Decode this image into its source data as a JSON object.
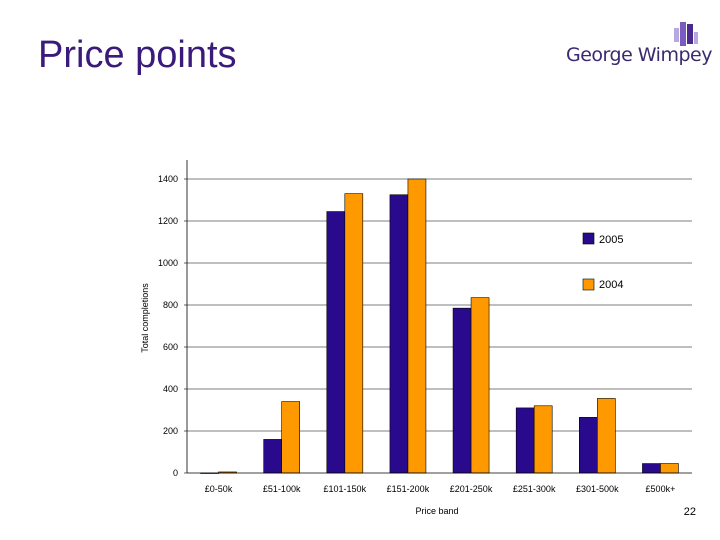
{
  "slide": {
    "title": "Price points",
    "logo_text": "George Wimpey",
    "page_number": "22"
  },
  "colors": {
    "series_2005": "#2a0a8c",
    "series_2004": "#ff9900",
    "title": "#3a1a7a",
    "logo": "#3a2a6e"
  },
  "chart_data": {
    "type": "bar",
    "title": "",
    "xlabel": "Price band",
    "ylabel": "Total completions",
    "ylim": [
      0,
      1400
    ],
    "yticks": [
      "0",
      "200",
      "400",
      "600",
      "800",
      "1000",
      "1200",
      "1400"
    ],
    "grid": true,
    "legend_position": "right",
    "categories": [
      "£0-50k",
      "£51-100k",
      "£101-150k",
      "£151-200k",
      "£201-250k",
      "£251-300k",
      "£301-500k",
      "£500k+"
    ],
    "series": [
      {
        "name": "2005",
        "values": [
          0,
          160,
          1245,
          1325,
          785,
          310,
          265,
          45
        ]
      },
      {
        "name": "2004",
        "values": [
          5,
          340,
          1330,
          1400,
          835,
          320,
          355,
          45
        ]
      }
    ]
  }
}
